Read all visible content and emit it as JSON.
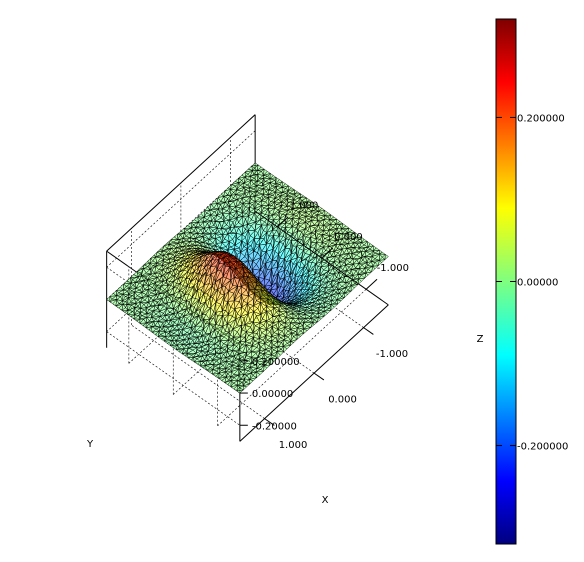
{
  "chart_data": {
    "type": "surface3d",
    "title": "",
    "xlabel": "X",
    "ylabel": "Y",
    "zlabel": "Z",
    "xlim": [
      -1.5,
      1.5
    ],
    "ylim": [
      -1.5,
      1.5
    ],
    "zlim": [
      -0.3,
      0.3
    ],
    "x_ticks": [
      {
        "value": -1.0,
        "label": "-1.000"
      },
      {
        "value": 0.0,
        "label": "0.000"
      },
      {
        "value": 1.0,
        "label": "1.000"
      }
    ],
    "y_ticks": [
      {
        "value": -1.0,
        "label": "-1.000"
      },
      {
        "value": 0.0,
        "label": "0.000"
      },
      {
        "value": 1.0,
        "label": "1.000"
      }
    ],
    "z_ticks": [
      {
        "value": 0.2,
        "label": "0.200000"
      },
      {
        "value": 0.0,
        "label": "0.00000"
      },
      {
        "value": -0.2,
        "label": "-0.20000"
      }
    ],
    "colorbar": {
      "range": [
        -0.32,
        0.32
      ],
      "colormap": "jet",
      "ticks": [
        {
          "value": 0.2,
          "label": "0.200000"
        },
        {
          "value": 0.0,
          "label": "0.00000"
        },
        {
          "value": -0.2,
          "label": "-0.200000"
        }
      ]
    },
    "surface": {
      "function": "z = 0.32 * sin(pi * x) * exp(-1.6 * (x^2 + y^2))",
      "mesh": "triangulated",
      "grid": true
    }
  }
}
